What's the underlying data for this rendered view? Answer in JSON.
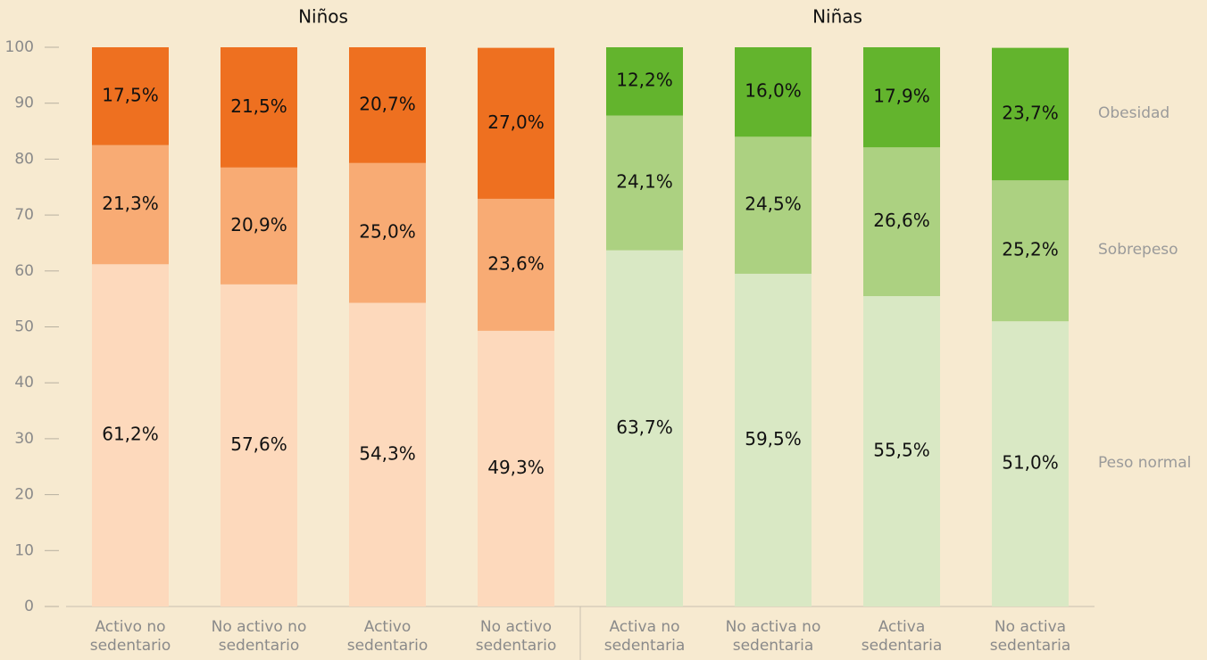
{
  "chart_data": {
    "type": "stacked_bar",
    "groups": [
      {
        "title": "Niños",
        "categories": [
          "Activo no sedentario",
          "No activo no sedentario",
          "Activo sedentario",
          "No activo sedentario"
        ]
      },
      {
        "title": "Niñas",
        "categories": [
          "Activa no sedentaria",
          "No activa no sedentaria",
          "Activa sedentaria",
          "No activa sedentaria"
        ]
      }
    ],
    "series": [
      {
        "name": "Peso normal",
        "colors": [
          "#fdd9bc",
          "#d9e8c4"
        ],
        "values": [
          61.2,
          57.6,
          54.3,
          49.3,
          63.7,
          59.5,
          55.5,
          51.0
        ],
        "value_labels": [
          "61,2%",
          "57,6%",
          "54,3%",
          "49,3%",
          "63,7%",
          "59,5%",
          "55,5%",
          "51,0%"
        ]
      },
      {
        "name": "Sobrepeso",
        "colors": [
          "#f8ab74",
          "#acd181"
        ],
        "values": [
          21.3,
          20.9,
          25.0,
          23.6,
          24.1,
          24.5,
          26.6,
          25.2
        ],
        "value_labels": [
          "21,3%",
          "20,9%",
          "25,0%",
          "23,6%",
          "24,1%",
          "24,5%",
          "26,6%",
          "25,2%"
        ]
      },
      {
        "name": "Obesidad",
        "colors": [
          "#ee7020",
          "#63b42d"
        ],
        "values": [
          17.5,
          21.5,
          20.7,
          27.0,
          12.2,
          16.0,
          17.9,
          23.7
        ],
        "value_labels": [
          "17,5%",
          "21,5%",
          "20,7%",
          "27,0%",
          "12,2%",
          "16,0%",
          "17,9%",
          "23,7%"
        ]
      }
    ],
    "ylim": [
      0,
      100
    ],
    "yticks": [
      0,
      10,
      20,
      30,
      40,
      50,
      60,
      70,
      80,
      90,
      100
    ]
  }
}
